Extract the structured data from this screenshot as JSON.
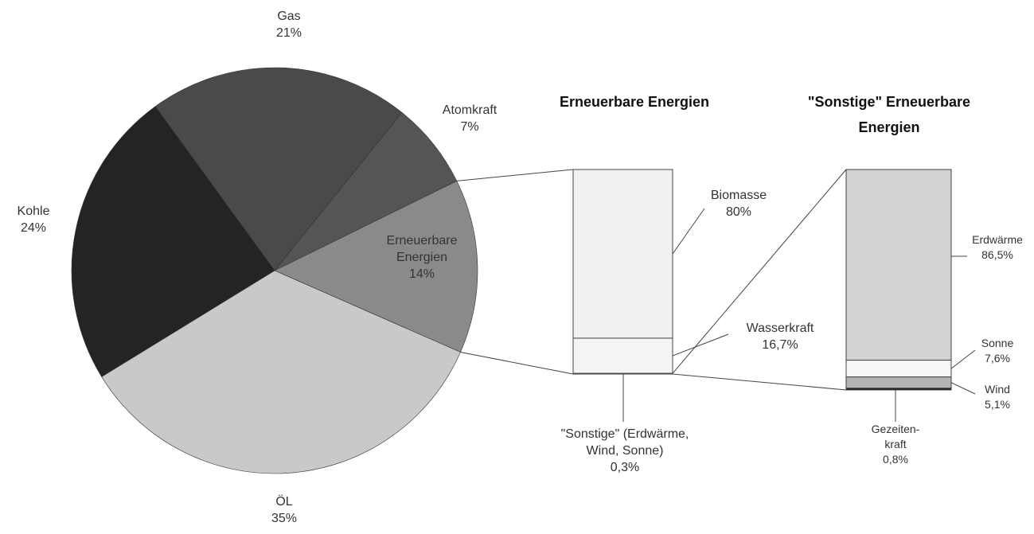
{
  "chart_data": [
    {
      "type": "pie",
      "categories": [
        "Gas",
        "Atomkraft",
        "Erneuerbare Energien",
        "ÖL",
        "Kohle"
      ],
      "values": [
        21,
        7,
        14,
        35,
        24
      ],
      "value_labels": [
        "21%",
        "7%",
        "14%",
        "35%",
        "24%"
      ],
      "colors": [
        "#4a4a4a",
        "#555555",
        "#8a8a8a",
        "#c9c9c9",
        "#242424"
      ]
    },
    {
      "type": "stacked-bar",
      "title": "Erneuerbare Energien",
      "categories": [
        "Biomasse",
        "Wasserkraft",
        "\"Sonstige\" (Erdwärme, Wind, Sonne)"
      ],
      "values": [
        80,
        16.7,
        0.3
      ],
      "value_labels": [
        "80%",
        "16,7%",
        "0,3%"
      ],
      "colors": [
        "#f0f0f0",
        "#f4f4f4",
        "#c8c8c8"
      ]
    },
    {
      "type": "stacked-bar",
      "title": "\"Sonstige\" Erneuerbare Energien",
      "categories": [
        "Erdwärme",
        "Sonne",
        "Wind",
        "Gezeiten-kraft"
      ],
      "values": [
        86.5,
        7.6,
        5.1,
        0.8
      ],
      "value_labels": [
        "86,5%",
        "7,6%",
        "5,1%",
        "0,8%"
      ],
      "colors": [
        "#d2d2d2",
        "#f6f6f6",
        "#b4b4b4",
        "#1a1a1a"
      ]
    }
  ]
}
